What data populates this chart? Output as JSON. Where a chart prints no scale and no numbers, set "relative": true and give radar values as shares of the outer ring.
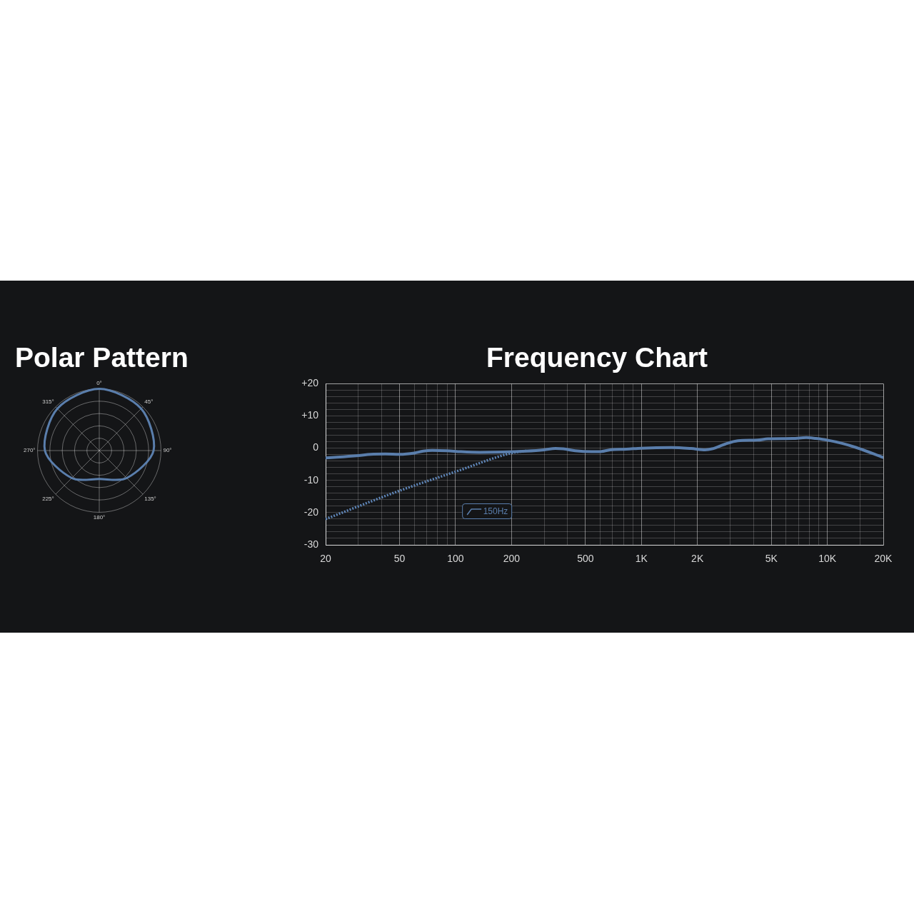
{
  "chart_data": [
    {
      "type": "radar",
      "title": "Polar Pattern",
      "categories": [
        "0°",
        "45°",
        "90°",
        "135°",
        "180°",
        "225°",
        "270°",
        "315°"
      ],
      "series": [
        {
          "color": "#5a7eac",
          "values": [
            1.0,
            0.96,
            0.88,
            0.63,
            0.46,
            0.63,
            0.88,
            0.96
          ]
        }
      ],
      "relative": true,
      "grid": true,
      "marker": "none"
    },
    {
      "type": "line",
      "title": "Frequency Chart",
      "log": "x",
      "xlim": [
        20,
        20000
      ],
      "xticks": [
        20,
        {
          "value": 30,
          "label": null
        },
        {
          "value": 40,
          "label": null
        },
        50,
        {
          "value": 60,
          "label": null
        },
        {
          "value": 70,
          "label": null
        },
        {
          "value": 80,
          "label": null
        },
        {
          "value": 90,
          "label": null
        },
        100,
        200,
        {
          "value": 300,
          "label": null
        },
        {
          "value": 400,
          "label": null
        },
        500,
        {
          "value": 600,
          "label": null
        },
        {
          "value": 700,
          "label": null
        },
        {
          "value": 800,
          "label": null
        },
        {
          "value": 900,
          "label": null
        },
        {
          "value": 1000,
          "label": "1K"
        },
        {
          "value": 1500,
          "label": null
        },
        {
          "value": 2000,
          "label": "2K"
        },
        {
          "value": 3000,
          "label": null
        },
        {
          "value": 4000,
          "label": null
        },
        {
          "value": 5000,
          "label": "5K"
        },
        {
          "value": 6000,
          "label": null
        },
        {
          "value": 7000,
          "label": null
        },
        {
          "value": 8000,
          "label": null
        },
        {
          "value": 9000,
          "label": null
        },
        {
          "value": 10000,
          "label": "10K"
        },
        {
          "value": 15000,
          "label": null
        },
        {
          "value": 20000,
          "label": "20K"
        }
      ],
      "ylim": [
        -30,
        20
      ],
      "yticks": [
        -30,
        {
          "value": -28,
          "label": null
        },
        {
          "value": -26,
          "label": null
        },
        {
          "value": -24,
          "label": null
        },
        {
          "value": -22,
          "label": null
        },
        -20,
        {
          "value": -18,
          "label": null
        },
        {
          "value": -16,
          "label": null
        },
        {
          "value": -14,
          "label": null
        },
        {
          "value": -12,
          "label": null
        },
        -10,
        {
          "value": -8,
          "label": null
        },
        {
          "value": -6,
          "label": null
        },
        {
          "value": -4,
          "label": null
        },
        {
          "value": -2,
          "label": null
        },
        0,
        {
          "value": 2,
          "label": null
        },
        {
          "value": 4,
          "label": null
        },
        {
          "value": 6,
          "label": null
        },
        {
          "value": 8,
          "label": null
        },
        {
          "value": 10,
          "label": "+10"
        },
        {
          "value": 12,
          "label": null
        },
        {
          "value": 14,
          "label": null
        },
        {
          "value": 16,
          "label": null
        },
        {
          "value": 18,
          "label": null
        },
        {
          "value": 20,
          "label": "+20"
        }
      ],
      "grid": true,
      "marker": "none",
      "series": [
        {
          "color": "#5a7eac",
          "x": [
            20,
            23,
            30,
            35,
            42,
            50,
            60,
            67,
            75,
            90,
            107,
            135,
            180,
            240,
            300,
            345,
            380,
            440,
            540,
            590,
            680,
            830,
            1000,
            1450,
            1850,
            2200,
            2400,
            2800,
            3300,
            4200,
            4800,
            6500,
            7700,
            8700,
            10000,
            12000,
            14300,
            20000
          ],
          "values": [
            -3.0,
            -2.8,
            -2.3,
            -1.9,
            -1.8,
            -1.9,
            -1.5,
            -0.9,
            -0.7,
            -0.8,
            -1.1,
            -1.3,
            -1.2,
            -0.9,
            -0.5,
            -0.1,
            -0.2,
            -0.8,
            -1.1,
            -1.1,
            -0.5,
            -0.3,
            0,
            0.2,
            -0.1,
            -0.5,
            -0.2,
            1.2,
            2.3,
            2.5,
            2.9,
            3.0,
            3.3,
            3.0,
            2.5,
            1.5,
            0.2,
            -2.9
          ]
        },
        {
          "color": "#5f86b8",
          "line_style": "dotted",
          "x": [
            20,
            50,
            100,
            200,
            240
          ],
          "values": [
            -22,
            -13.2,
            -7.3,
            -1.5,
            -0.8
          ]
        }
      ],
      "annotations": [
        "150Hz"
      ]
    }
  ]
}
